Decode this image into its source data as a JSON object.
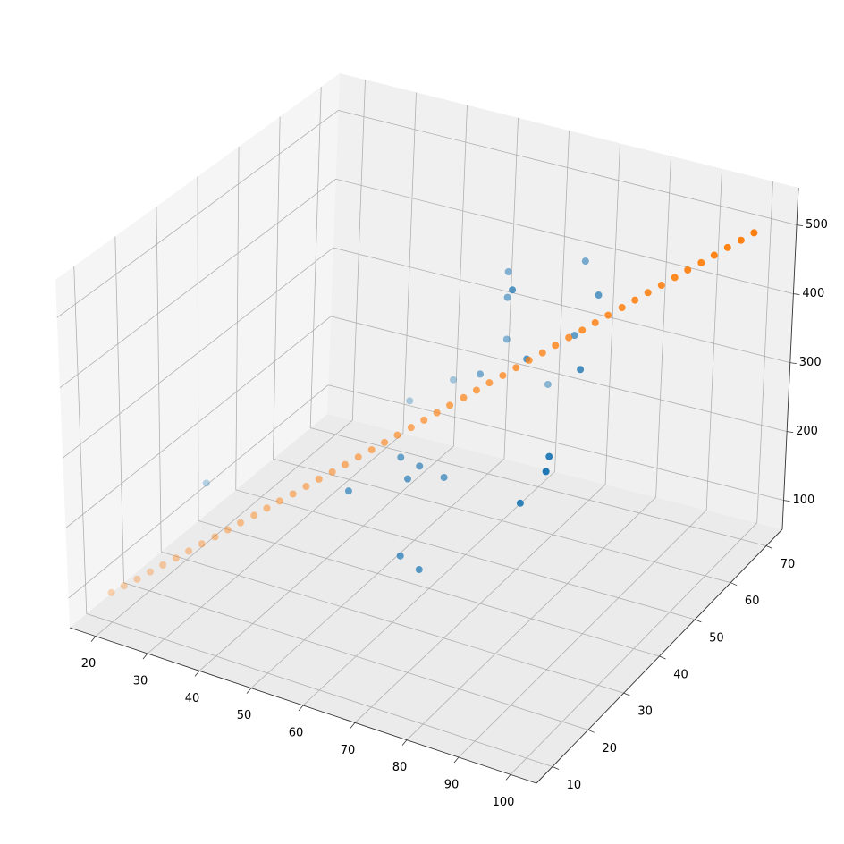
{
  "chart_data": {
    "type": "scatter3d",
    "xlim": [
      15,
      105
    ],
    "ylim": [
      5.5,
      74.5
    ],
    "zlim": [
      58,
      554
    ],
    "xticks": [
      20,
      30,
      40,
      50,
      60,
      70,
      80,
      90,
      100
    ],
    "yticks": [
      10,
      20,
      30,
      40,
      50,
      60,
      70
    ],
    "zticks": [
      100,
      200,
      300,
      400,
      500
    ],
    "grid": true,
    "series": [
      {
        "color": "#1f77b4",
        "x": [
          26.8,
          59.4,
          64.4,
          53.4,
          68,
          68.2,
          72.7,
          71.7,
          75.3,
          59.3,
          69.5,
          67,
          69.5,
          75.5,
          69.5,
          80.9,
          77.6,
          85,
          79.3,
          87,
          91.2,
          95.3,
          97.2,
          92.3
        ],
        "y": [
          26.2,
          19.3,
          26.2,
          43.5,
          26.2,
          22.8,
          26.2,
          15.9,
          15.9,
          46.9,
          40,
          50.4,
          46.9,
          40,
          46.9,
          36.6,
          46.9,
          43.5,
          53.8,
          46.9,
          36.6,
          22.8,
          19.3,
          19.3
        ],
        "z": [
          199,
          288,
          314,
          293,
          309,
          307,
          303,
          240,
          229,
          319,
          378,
          471,
          455,
          507,
          396,
          436,
          348,
          446,
          494,
          491,
          441,
          391,
          390,
          338
        ]
      },
      {
        "color": "#ff7f0e",
        "x": [
          20,
          21.6,
          23.3,
          24.9,
          26.5,
          28.2,
          29.8,
          31.4,
          33.1,
          34.7,
          36.3,
          38,
          39.6,
          41.2,
          42.9,
          44.5,
          46.1,
          47.8,
          49.4,
          51,
          52.7,
          54.3,
          55.9,
          57.6,
          59.2,
          60.8,
          62.4,
          64.1,
          65.7,
          67.3,
          69,
          70.6,
          72.2,
          73.9,
          75.5,
          77.1,
          78.8,
          80.4,
          82,
          83.7,
          85.3,
          86.9,
          88.6,
          90.2,
          91.8,
          93.5,
          95.1,
          96.7,
          98.4,
          100
        ],
        "y": [
          10,
          11.2,
          12.4,
          13.7,
          14.9,
          16.1,
          17.3,
          18.6,
          19.8,
          21,
          22.2,
          23.5,
          24.7,
          25.9,
          27.1,
          28.4,
          29.6,
          30.8,
          32,
          33.3,
          34.5,
          35.7,
          36.9,
          38.2,
          39.4,
          40.6,
          41.8,
          43.1,
          44.3,
          45.5,
          46.7,
          48,
          49.2,
          50.4,
          51.6,
          52.9,
          54.1,
          55.3,
          56.5,
          57.8,
          59,
          60.2,
          61.4,
          62.7,
          63.9,
          65.1,
          66.3,
          67.6,
          68.8,
          70
        ],
        "z": [
          100,
          108.2,
          116.3,
          124.5,
          132.7,
          140.8,
          149,
          157.1,
          165.3,
          173.5,
          181.6,
          189.8,
          198,
          206.1,
          214.3,
          222.4,
          230.6,
          238.8,
          246.9,
          255.1,
          263.3,
          271.4,
          279.6,
          287.8,
          295.9,
          304.1,
          312.2,
          320.4,
          328.6,
          336.7,
          344.9,
          353.1,
          361.2,
          369.4,
          377.6,
          385.7,
          393.9,
          402,
          410.2,
          418.4,
          426.5,
          434.7,
          442.9,
          451,
          459.2,
          467.3,
          475.5,
          483.7,
          491.8,
          500
        ]
      }
    ]
  }
}
